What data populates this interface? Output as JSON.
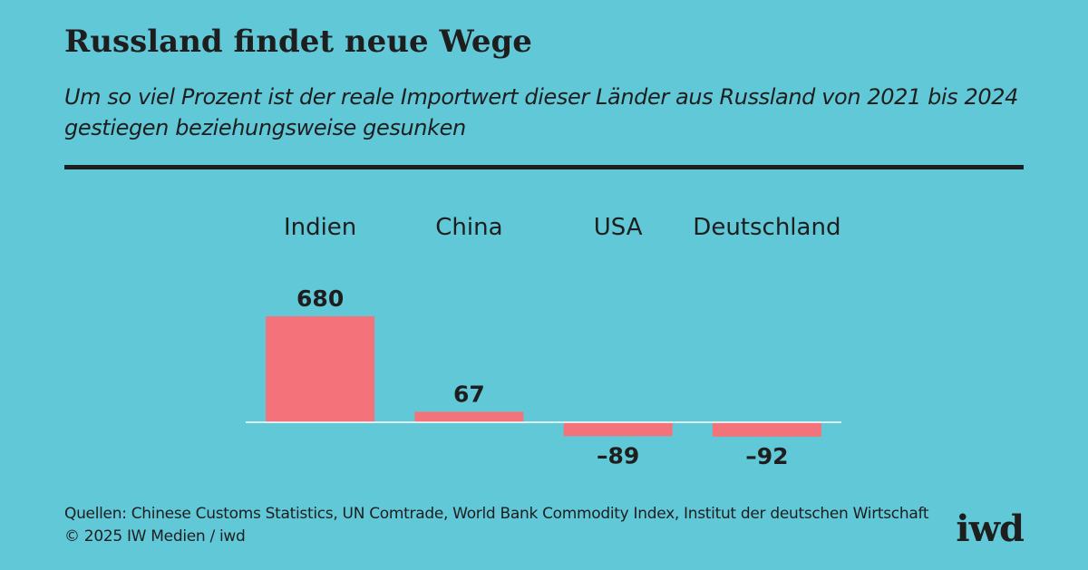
{
  "title": "Russland findet neue Wege",
  "subtitle": "Um so viel Prozent ist der reale Importwert dieser Länder aus Russland von 2021 bis 2024 gestiegen beziehungsweise gesunken",
  "source": {
    "line1": "Quellen: Chinese Customs Statistics, UN Comtrade, World Bank Commodity Index, Institut der deutschen Wirtschaft",
    "line2": "© 2025 IW Medien / iwd"
  },
  "logo": "iwd",
  "colors": {
    "background": "#61c8d8",
    "bar": "#f4737b",
    "text": "#1e1e1e",
    "baseline": "#ffffff"
  },
  "chart_data": {
    "type": "bar",
    "categories": [
      "Indien",
      "China",
      "USA",
      "Deutschland"
    ],
    "values": [
      680,
      67,
      -89,
      -92
    ],
    "value_labels": [
      "680",
      "67",
      "–89",
      "–92"
    ],
    "title": "Russland findet neue Wege",
    "xlabel": "",
    "ylabel": "",
    "grid": false,
    "legend": "none"
  }
}
